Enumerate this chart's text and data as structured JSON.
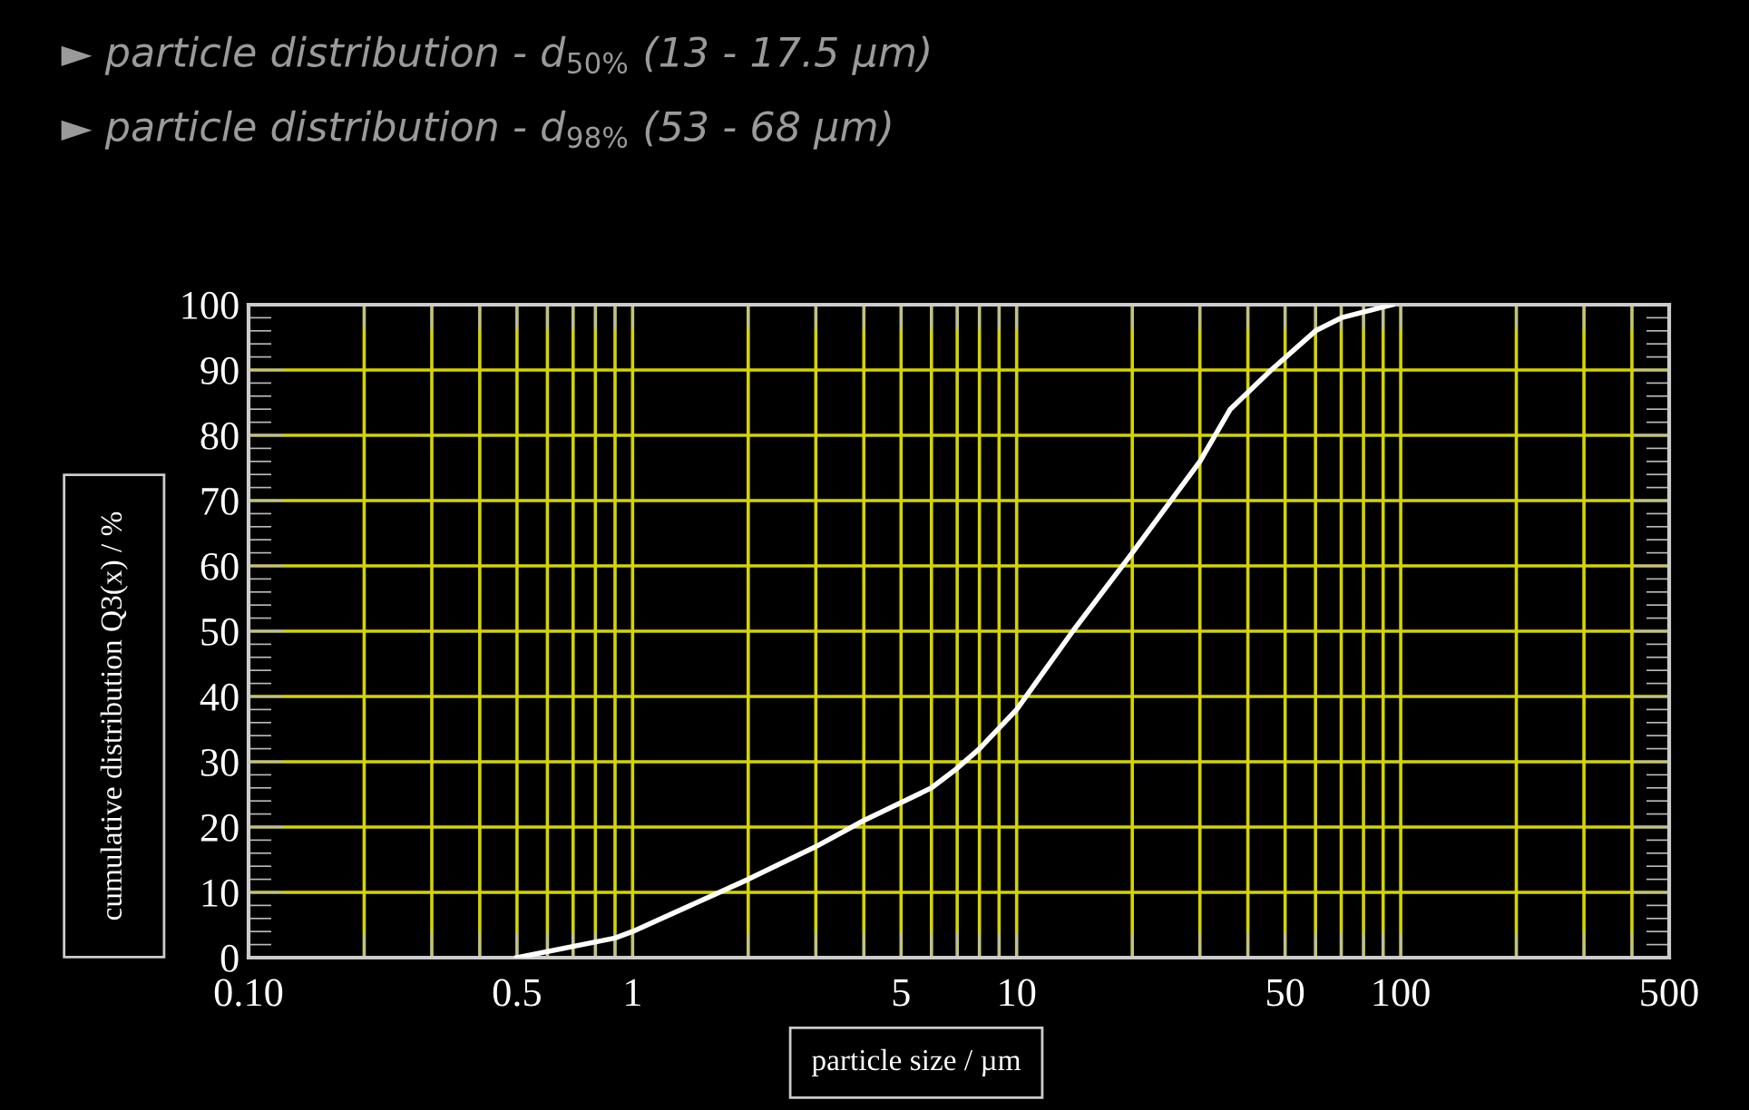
{
  "chart_data": {
    "type": "line",
    "title": "► particle distribution - d$_{50%}$ (13 - 17.5 µm)",
    "subtitle": "► particle distribution - d$_{98%}$ (53 - 68 µm)",
    "xlabel": "particle size / µm",
    "ylabel": "cumulative distribution Q3(x) / %",
    "log": "x",
    "grid": true,
    "marker": "none",
    "line_style": "solid",
    "series": [
      {
        "color": "#ffffff",
        "x": [
          0.5,
          0.9,
          1,
          2,
          3,
          4,
          6,
          7,
          8,
          10,
          14,
          20,
          30,
          36,
          46,
          60,
          70,
          95
        ],
        "values": [
          0,
          3,
          4,
          12,
          17,
          21,
          26,
          29,
          32,
          38,
          50,
          62,
          76,
          84,
          90,
          96,
          98,
          100
        ]
      }
    ],
    "xlim": [
      0.1,
      500
    ],
    "ylim": [
      0,
      100
    ],
    "xticks": [
      {
        "value": 0.1,
        "label": "0.10"
      },
      {
        "value": 0.2,
        "label": null
      },
      {
        "value": 0.3,
        "label": null
      },
      {
        "value": 0.4,
        "label": null
      },
      0.5,
      {
        "value": 0.6,
        "label": null
      },
      {
        "value": 0.7,
        "label": null
      },
      {
        "value": 0.8,
        "label": null
      },
      {
        "value": 0.9,
        "label": null
      },
      1,
      {
        "value": 2,
        "label": null
      },
      {
        "value": 3,
        "label": null
      },
      {
        "value": 4,
        "label": null
      },
      5,
      {
        "value": 6,
        "label": null
      },
      {
        "value": 7,
        "label": null
      },
      {
        "value": 8,
        "label": null
      },
      {
        "value": 9,
        "label": null
      },
      10,
      {
        "value": 20,
        "label": null
      },
      {
        "value": 30,
        "label": null
      },
      {
        "value": 40,
        "label": null
      },
      50,
      {
        "value": 60,
        "label": null
      },
      {
        "value": 70,
        "label": null
      },
      {
        "value": 80,
        "label": null
      },
      {
        "value": 90,
        "label": null
      },
      100,
      {
        "value": 200,
        "label": null
      },
      {
        "value": 300,
        "label": null
      },
      {
        "value": 400,
        "label": null
      },
      500
    ],
    "yticks": [
      0,
      10,
      20,
      30,
      40,
      50,
      60,
      70,
      80,
      90,
      100
    ]
  }
}
